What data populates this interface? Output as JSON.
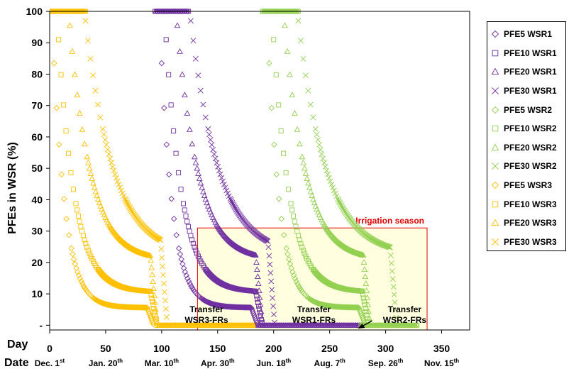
{
  "chart_data": {
    "type": "scatter",
    "xlabel": "Day",
    "row2label": "Date",
    "ylabel": "PFEs in WSR (%)",
    "xlim": [
      0,
      375
    ],
    "ylim": [
      -1.5,
      100
    ],
    "x_ticks": [
      0,
      50,
      100,
      150,
      200,
      250,
      300,
      350
    ],
    "x_tick_labels": [
      "0",
      "50",
      "100",
      "150",
      "200",
      "250",
      "300",
      "350"
    ],
    "y_ticks": [
      0,
      10,
      20,
      30,
      40,
      50,
      60,
      70,
      80,
      90,
      100
    ],
    "y_tick_labels": [
      "-",
      "10",
      "20",
      "30",
      "40",
      "50",
      "60",
      "70",
      "80",
      "90",
      "100"
    ],
    "date_labels": [
      {
        "x": 0,
        "text": "Dec. 1",
        "sup": "st"
      },
      {
        "x": 50,
        "text": "Jan. 20",
        "sup": "th"
      },
      {
        "x": 100,
        "text": "Mar. 10",
        "sup": "th"
      },
      {
        "x": 150,
        "text": "Apr. 30",
        "sup": "th"
      },
      {
        "x": 200,
        "text": "Jun. 18",
        "sup": "th"
      },
      {
        "x": 250,
        "text": "Aug. 7",
        "sup": "th"
      },
      {
        "x": 300,
        "text": "Sep. 26",
        "sup": "th"
      },
      {
        "x": 350,
        "text": "Nov. 15",
        "sup": "th"
      }
    ],
    "annotations": {
      "irrigation": {
        "label": "Irrigation season",
        "x_range": [
          132,
          337
        ],
        "y_range": [
          -1.5,
          31
        ]
      },
      "transfers": [
        {
          "line1": "Transfer",
          "line2": "WSR3-FRs",
          "x": 140,
          "y": 10
        },
        {
          "line1": "Transfer",
          "line2": "WSR1-FRs",
          "x": 236,
          "y": 10
        },
        {
          "line1": "Transfer",
          "line2": "WSR2-FRs",
          "x": 317,
          "y": 10
        }
      ]
    },
    "reservoirs": [
      {
        "name": "WSR3",
        "color": "#FFC000",
        "flat_x": [
          0,
          32
        ],
        "tail_x": [
          97,
          184
        ]
      },
      {
        "name": "WSR1",
        "color": "#7030A0",
        "flat_x": [
          94,
          124
        ],
        "tail_x": [
          186,
          281
        ]
      },
      {
        "name": "WSR2",
        "color": "#92D050",
        "flat_x": [
          190,
          222
        ],
        "tail_x": [
          278,
          328
        ]
      }
    ],
    "series": [
      {
        "name": "PFE5 WSR1",
        "reservoir": "WSR1",
        "marker": "diamond",
        "start_x": 100,
        "start_y": 83.5,
        "k": 0.092,
        "floor": 5.6,
        "end_x": 186
      },
      {
        "name": "PFE10 WSR1",
        "reservoir": "WSR1",
        "marker": "square",
        "start_x": 104,
        "start_y": 91,
        "k": 0.068,
        "floor": 10.5,
        "end_x": 190
      },
      {
        "name": "PFE20 WSR1",
        "reservoir": "WSR1",
        "marker": "triangle",
        "start_x": 114,
        "start_y": 95.5,
        "k": 0.053,
        "floor": 20.5,
        "end_x": 190
      },
      {
        "name": "PFE30 WSR1",
        "reservoir": "WSR1",
        "marker": "x",
        "start_x": 126,
        "start_y": 97,
        "k": 0.04,
        "floor": 22,
        "end_x": 201
      },
      {
        "name": "PFE5 WSR2",
        "reservoir": "WSR2",
        "marker": "diamond",
        "start_x": 196,
        "start_y": 83.5,
        "k": 0.092,
        "floor": 5.6,
        "end_x": 282
      },
      {
        "name": "PFE10 WSR2",
        "reservoir": "WSR2",
        "marker": "square",
        "start_x": 200,
        "start_y": 91,
        "k": 0.068,
        "floor": 10.5,
        "end_x": 285
      },
      {
        "name": "PFE20 WSR2",
        "reservoir": "WSR2",
        "marker": "triangle",
        "start_x": 210,
        "start_y": 95.5,
        "k": 0.053,
        "floor": 20.5,
        "end_x": 286
      },
      {
        "name": "PFE30 WSR2",
        "reservoir": "WSR2",
        "marker": "x",
        "start_x": 222,
        "start_y": 97,
        "k": 0.04,
        "floor": 22,
        "end_x": 310
      },
      {
        "name": "PFE5 WSR3",
        "reservoir": "WSR3",
        "marker": "diamond",
        "start_x": 4,
        "start_y": 83.5,
        "k": 0.092,
        "floor": 5.6,
        "end_x": 93
      },
      {
        "name": "PFE10 WSR3",
        "reservoir": "WSR3",
        "marker": "square",
        "start_x": 8,
        "start_y": 91,
        "k": 0.068,
        "floor": 10.5,
        "end_x": 96
      },
      {
        "name": "PFE20 WSR3",
        "reservoir": "WSR3",
        "marker": "triangle",
        "start_x": 18,
        "start_y": 95.5,
        "k": 0.053,
        "floor": 20.5,
        "end_x": 96
      },
      {
        "name": "PFE30 WSR3",
        "reservoir": "WSR3",
        "marker": "x",
        "start_x": 32,
        "start_y": 97,
        "k": 0.04,
        "floor": 22,
        "end_x": 105
      }
    ]
  }
}
